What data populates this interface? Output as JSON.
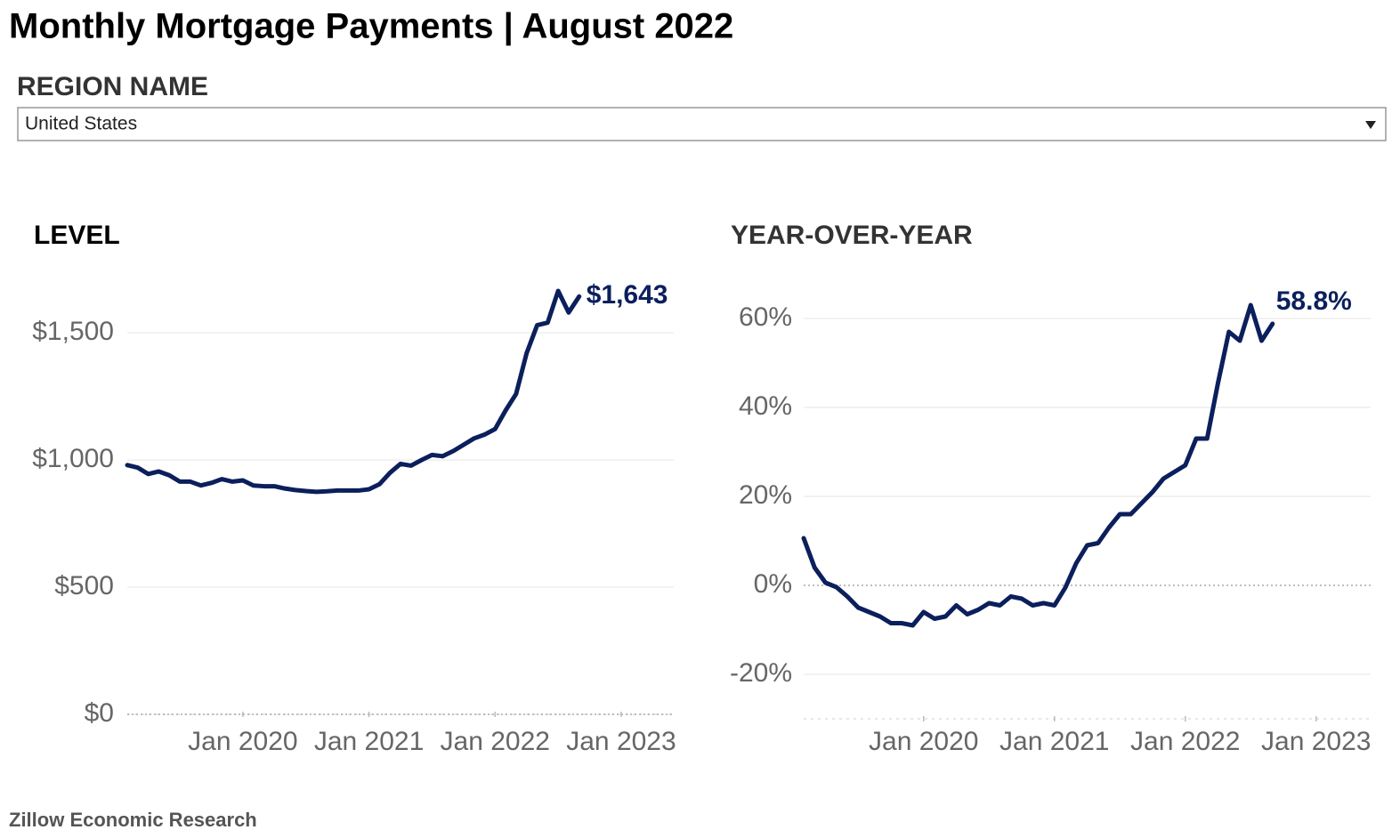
{
  "title": "Monthly Mortgage Payments | August 2022",
  "filter": {
    "label": "REGION NAME",
    "value": "United States"
  },
  "footer": "Zillow Economic Research",
  "chart_data": [
    {
      "type": "line",
      "title": "LEVEL",
      "x": [
        "2019-02",
        "2019-03",
        "2019-04",
        "2019-05",
        "2019-06",
        "2019-07",
        "2019-08",
        "2019-09",
        "2019-10",
        "2019-11",
        "2019-12",
        "2020-01",
        "2020-02",
        "2020-03",
        "2020-04",
        "2020-05",
        "2020-06",
        "2020-07",
        "2020-08",
        "2020-09",
        "2020-10",
        "2020-11",
        "2020-12",
        "2021-01",
        "2021-02",
        "2021-03",
        "2021-04",
        "2021-05",
        "2021-06",
        "2021-07",
        "2021-08",
        "2021-09",
        "2021-10",
        "2021-11",
        "2021-12",
        "2022-01",
        "2022-02",
        "2022-03",
        "2022-04",
        "2022-05",
        "2022-06",
        "2022-07",
        "2022-08",
        "2022-09"
      ],
      "series": [
        {
          "color": "#0b1f5c",
          "values": [
            980,
            970,
            945,
            955,
            940,
            915,
            915,
            900,
            910,
            925,
            915,
            920,
            900,
            897,
            897,
            888,
            882,
            878,
            875,
            877,
            880,
            880,
            880,
            885,
            905,
            950,
            985,
            978,
            1000,
            1020,
            1015,
            1035,
            1060,
            1085,
            1100,
            1122,
            1195,
            1260,
            1420,
            1530,
            1540,
            1665,
            1580,
            1643
          ],
          "value_labels": [
            null,
            null,
            null,
            null,
            null,
            null,
            null,
            null,
            null,
            null,
            null,
            null,
            null,
            null,
            null,
            null,
            null,
            null,
            null,
            null,
            null,
            null,
            null,
            null,
            null,
            null,
            null,
            null,
            null,
            null,
            null,
            null,
            null,
            null,
            null,
            null,
            null,
            null,
            null,
            null,
            null,
            null,
            null,
            "$1,643"
          ]
        }
      ],
      "xlim": [
        "2019-02",
        "2023-06"
      ],
      "xticks": [
        {
          "value": "2020-01",
          "label": "Jan 2020"
        },
        {
          "value": "2021-01",
          "label": "Jan 2021"
        },
        {
          "value": "2022-01",
          "label": "Jan 2022"
        },
        {
          "value": "2023-01",
          "label": "Jan 2023"
        }
      ],
      "ylim": [
        0,
        1700
      ],
      "yticks": [
        {
          "value": 0,
          "label": "$0"
        },
        {
          "value": 500,
          "label": "$500"
        },
        {
          "value": 1000,
          "label": "$1,000"
        },
        {
          "value": 1500,
          "label": "$1,500"
        }
      ],
      "grid": true
    },
    {
      "type": "line",
      "title": "YEAR-OVER-YEAR",
      "x": [
        "2019-02",
        "2019-03",
        "2019-04",
        "2019-05",
        "2019-06",
        "2019-07",
        "2019-08",
        "2019-09",
        "2019-10",
        "2019-11",
        "2019-12",
        "2020-01",
        "2020-02",
        "2020-03",
        "2020-04",
        "2020-05",
        "2020-06",
        "2020-07",
        "2020-08",
        "2020-09",
        "2020-10",
        "2020-11",
        "2020-12",
        "2021-01",
        "2021-02",
        "2021-03",
        "2021-04",
        "2021-05",
        "2021-06",
        "2021-07",
        "2021-08",
        "2021-09",
        "2021-10",
        "2021-11",
        "2021-12",
        "2022-01",
        "2022-02",
        "2022-03",
        "2022-04",
        "2022-05",
        "2022-06",
        "2022-07",
        "2022-08",
        "2022-09"
      ],
      "series": [
        {
          "color": "#0b1f5c",
          "values": [
            10.6,
            4,
            0.6,
            -0.4,
            -2.5,
            -5,
            -6,
            -7,
            -8.5,
            -8.5,
            -9,
            -6,
            -7.5,
            -7,
            -4.5,
            -6.5,
            -5.5,
            -4,
            -4.5,
            -2.5,
            -3,
            -4.5,
            -4,
            -4.5,
            -0.5,
            5,
            9,
            9.5,
            13,
            16,
            16,
            18.5,
            21,
            24,
            25.5,
            27,
            33,
            33,
            45.5,
            57,
            55,
            63,
            55,
            58.8
          ],
          "value_labels": [
            null,
            null,
            null,
            null,
            null,
            null,
            null,
            null,
            null,
            null,
            null,
            null,
            null,
            null,
            null,
            null,
            null,
            null,
            null,
            null,
            null,
            null,
            null,
            null,
            null,
            null,
            null,
            null,
            null,
            null,
            null,
            null,
            null,
            null,
            null,
            null,
            null,
            null,
            null,
            null,
            null,
            null,
            null,
            "58.8%"
          ]
        }
      ],
      "xlim": [
        "2019-02",
        "2023-06"
      ],
      "xticks": [
        {
          "value": "2020-01",
          "label": "Jan 2020"
        },
        {
          "value": "2021-01",
          "label": "Jan 2021"
        },
        {
          "value": "2022-01",
          "label": "Jan 2022"
        },
        {
          "value": "2023-01",
          "label": "Jan 2023"
        }
      ],
      "ylim": [
        -30,
        70
      ],
      "yticks": [
        {
          "value": -20,
          "label": "-20%"
        },
        {
          "value": 0,
          "label": "0%"
        },
        {
          "value": 20,
          "label": "20%"
        },
        {
          "value": 40,
          "label": "40%"
        },
        {
          "value": 60,
          "label": "60%"
        }
      ],
      "grid": true
    }
  ]
}
